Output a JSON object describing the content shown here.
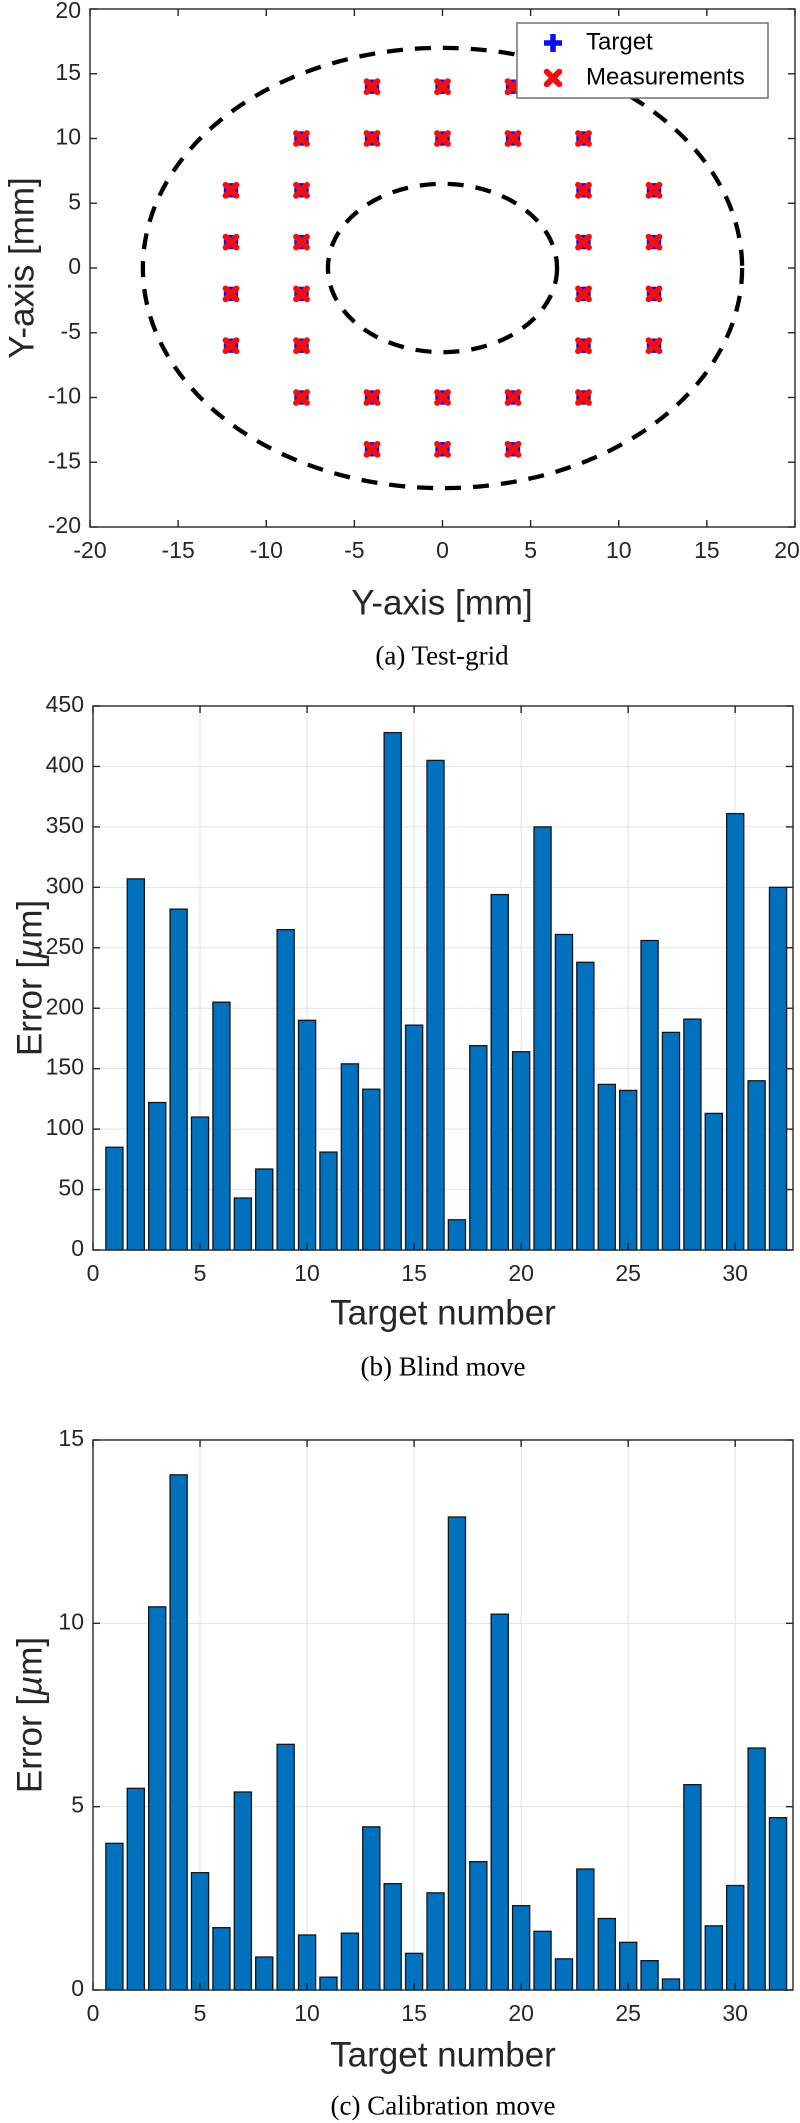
{
  "colors": {
    "bar_fill": "#0072BD",
    "bar_edge": "#14141e",
    "target_blue": "#0d0df2",
    "measurement_red": "#f30d0d",
    "axis": "#262626",
    "grid": "#e2e2e2",
    "dashed_circle": "#000000",
    "legend_border": "#707070",
    "text": "#262626"
  },
  "chart_data": [
    {
      "id": "a",
      "type": "scatter",
      "title": "(a) Test-grid",
      "xlabel": "Y-axis [mm]",
      "ylabel": "Y-axis [mm]",
      "xlim": [
        -20,
        20
      ],
      "ylim": [
        -20,
        20
      ],
      "x_ticks": [
        -20,
        -15,
        -10,
        -5,
        0,
        5,
        10,
        15,
        20
      ],
      "y_ticks": [
        -20,
        -15,
        -10,
        -5,
        0,
        5,
        10,
        15,
        20
      ],
      "grid": false,
      "legend": {
        "position": "top-right",
        "entries": [
          {
            "label": "Target",
            "marker": "plus",
            "color": "#0d0df2"
          },
          {
            "label": "Measurements",
            "marker": "x",
            "color": "#f30d0d"
          }
        ]
      },
      "points": [
        [
          -4,
          14
        ],
        [
          0,
          14
        ],
        [
          4,
          14
        ],
        [
          -8,
          10
        ],
        [
          -4,
          10
        ],
        [
          0,
          10
        ],
        [
          4,
          10
        ],
        [
          8,
          10
        ],
        [
          -12,
          6
        ],
        [
          -8,
          6
        ],
        [
          8,
          6
        ],
        [
          12,
          6
        ],
        [
          -12,
          2
        ],
        [
          -8,
          2
        ],
        [
          8,
          2
        ],
        [
          12,
          2
        ],
        [
          -12,
          -2
        ],
        [
          -8,
          -2
        ],
        [
          8,
          -2
        ],
        [
          12,
          -2
        ],
        [
          -12,
          -6
        ],
        [
          -8,
          -6
        ],
        [
          8,
          -6
        ],
        [
          12,
          -6
        ],
        [
          -8,
          -10
        ],
        [
          -4,
          -10
        ],
        [
          0,
          -10
        ],
        [
          4,
          -10
        ],
        [
          8,
          -10
        ],
        [
          -4,
          -14
        ],
        [
          0,
          -14
        ],
        [
          4,
          -14
        ]
      ],
      "series": [
        {
          "name": "Target",
          "marker": "plus",
          "color": "#0d0df2"
        },
        {
          "name": "Measurements",
          "marker": "x",
          "color": "#f30d0d"
        }
      ],
      "annotations": {
        "dashed_circles": [
          {
            "cx": 0,
            "cy": 0,
            "r": 17
          },
          {
            "cx": 0,
            "cy": 0,
            "r": 6.5
          }
        ]
      }
    },
    {
      "id": "b",
      "type": "bar",
      "title": "(b) Blind move",
      "xlabel": "Target number",
      "ylabel": "Error [µm]",
      "ylabel_parts": [
        "Error [",
        "µ",
        "m]"
      ],
      "xlim": [
        0,
        32.7
      ],
      "ylim": [
        0,
        450
      ],
      "x_ticks": [
        0,
        5,
        10,
        15,
        20,
        25,
        30
      ],
      "y_ticks": [
        0,
        50,
        100,
        150,
        200,
        250,
        300,
        350,
        400,
        450
      ],
      "grid": true,
      "bar_width": 0.8,
      "categories": [
        1,
        2,
        3,
        4,
        5,
        6,
        7,
        8,
        9,
        10,
        11,
        12,
        13,
        14,
        15,
        16,
        17,
        18,
        19,
        20,
        21,
        22,
        23,
        24,
        25,
        26,
        27,
        28,
        29,
        30,
        31,
        32
      ],
      "values": [
        85,
        307,
        122,
        282,
        110,
        205,
        43,
        67,
        265,
        190,
        81,
        154,
        133,
        428,
        186,
        405,
        25,
        169,
        294,
        164,
        350,
        261,
        238,
        137,
        132,
        256,
        180,
        191,
        113,
        361,
        140,
        300
      ]
    },
    {
      "id": "c",
      "type": "bar",
      "title": "(c) Calibration move",
      "xlabel": "Target number",
      "ylabel": "Error [µm]",
      "ylabel_parts": [
        "Error [",
        "µ",
        "m]"
      ],
      "xlim": [
        0,
        32.7
      ],
      "ylim": [
        0,
        15
      ],
      "x_ticks": [
        0,
        5,
        10,
        15,
        20,
        25,
        30
      ],
      "y_ticks": [
        0,
        5,
        10,
        15
      ],
      "grid": true,
      "bar_width": 0.8,
      "categories": [
        1,
        2,
        3,
        4,
        5,
        6,
        7,
        8,
        9,
        10,
        11,
        12,
        13,
        14,
        15,
        16,
        17,
        18,
        19,
        20,
        21,
        22,
        23,
        24,
        25,
        26,
        27,
        28,
        29,
        30,
        31,
        32
      ],
      "values": [
        4.0,
        5.5,
        10.45,
        14.05,
        3.2,
        1.7,
        5.4,
        0.9,
        6.7,
        1.5,
        0.35,
        1.55,
        4.45,
        2.9,
        1.0,
        2.65,
        12.9,
        3.5,
        10.25,
        2.3,
        1.6,
        0.85,
        3.3,
        1.95,
        1.3,
        0.8,
        0.3,
        5.6,
        1.75,
        2.85,
        6.6,
        4.7
      ]
    }
  ]
}
